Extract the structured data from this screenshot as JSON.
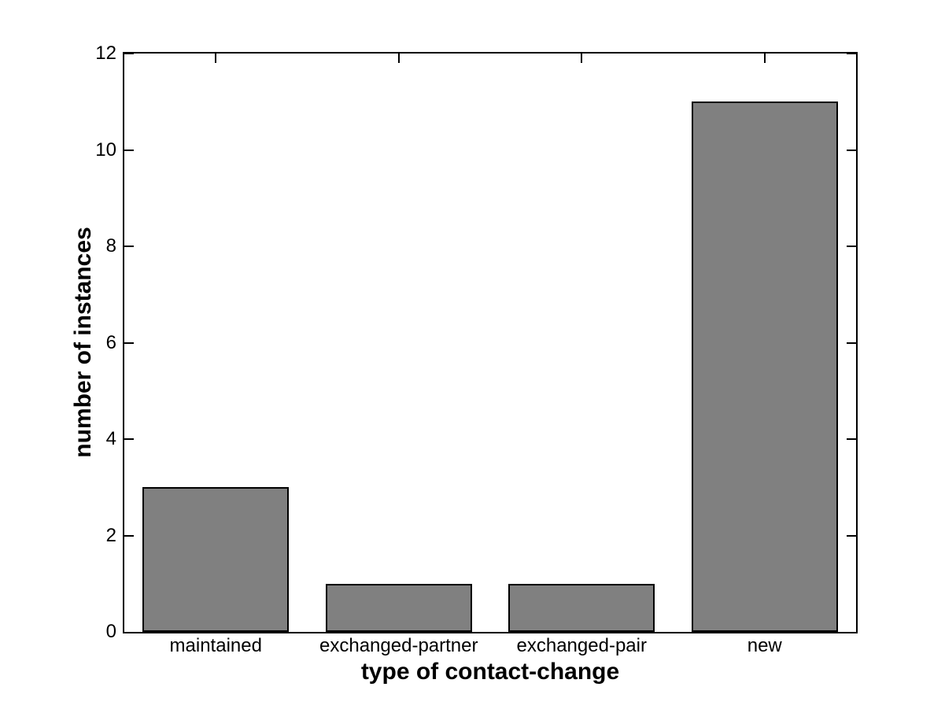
{
  "chart_data": {
    "type": "bar",
    "categories": [
      "maintained",
      "exchanged-partner",
      "exchanged-pair",
      "new"
    ],
    "values": [
      3,
      1,
      1,
      11
    ],
    "title": "",
    "xlabel": "type of contact-change",
    "ylabel": "number of instances",
    "ylim": [
      0,
      12
    ],
    "yticks": [
      0,
      2,
      4,
      6,
      8,
      10,
      12
    ],
    "grid": false,
    "legend_position": "none",
    "bar_width_fraction": 0.8,
    "bar_color": "#808080",
    "bar_edge_color": "#000000",
    "axis_color": "#000000",
    "background_color": "#ffffff"
  }
}
